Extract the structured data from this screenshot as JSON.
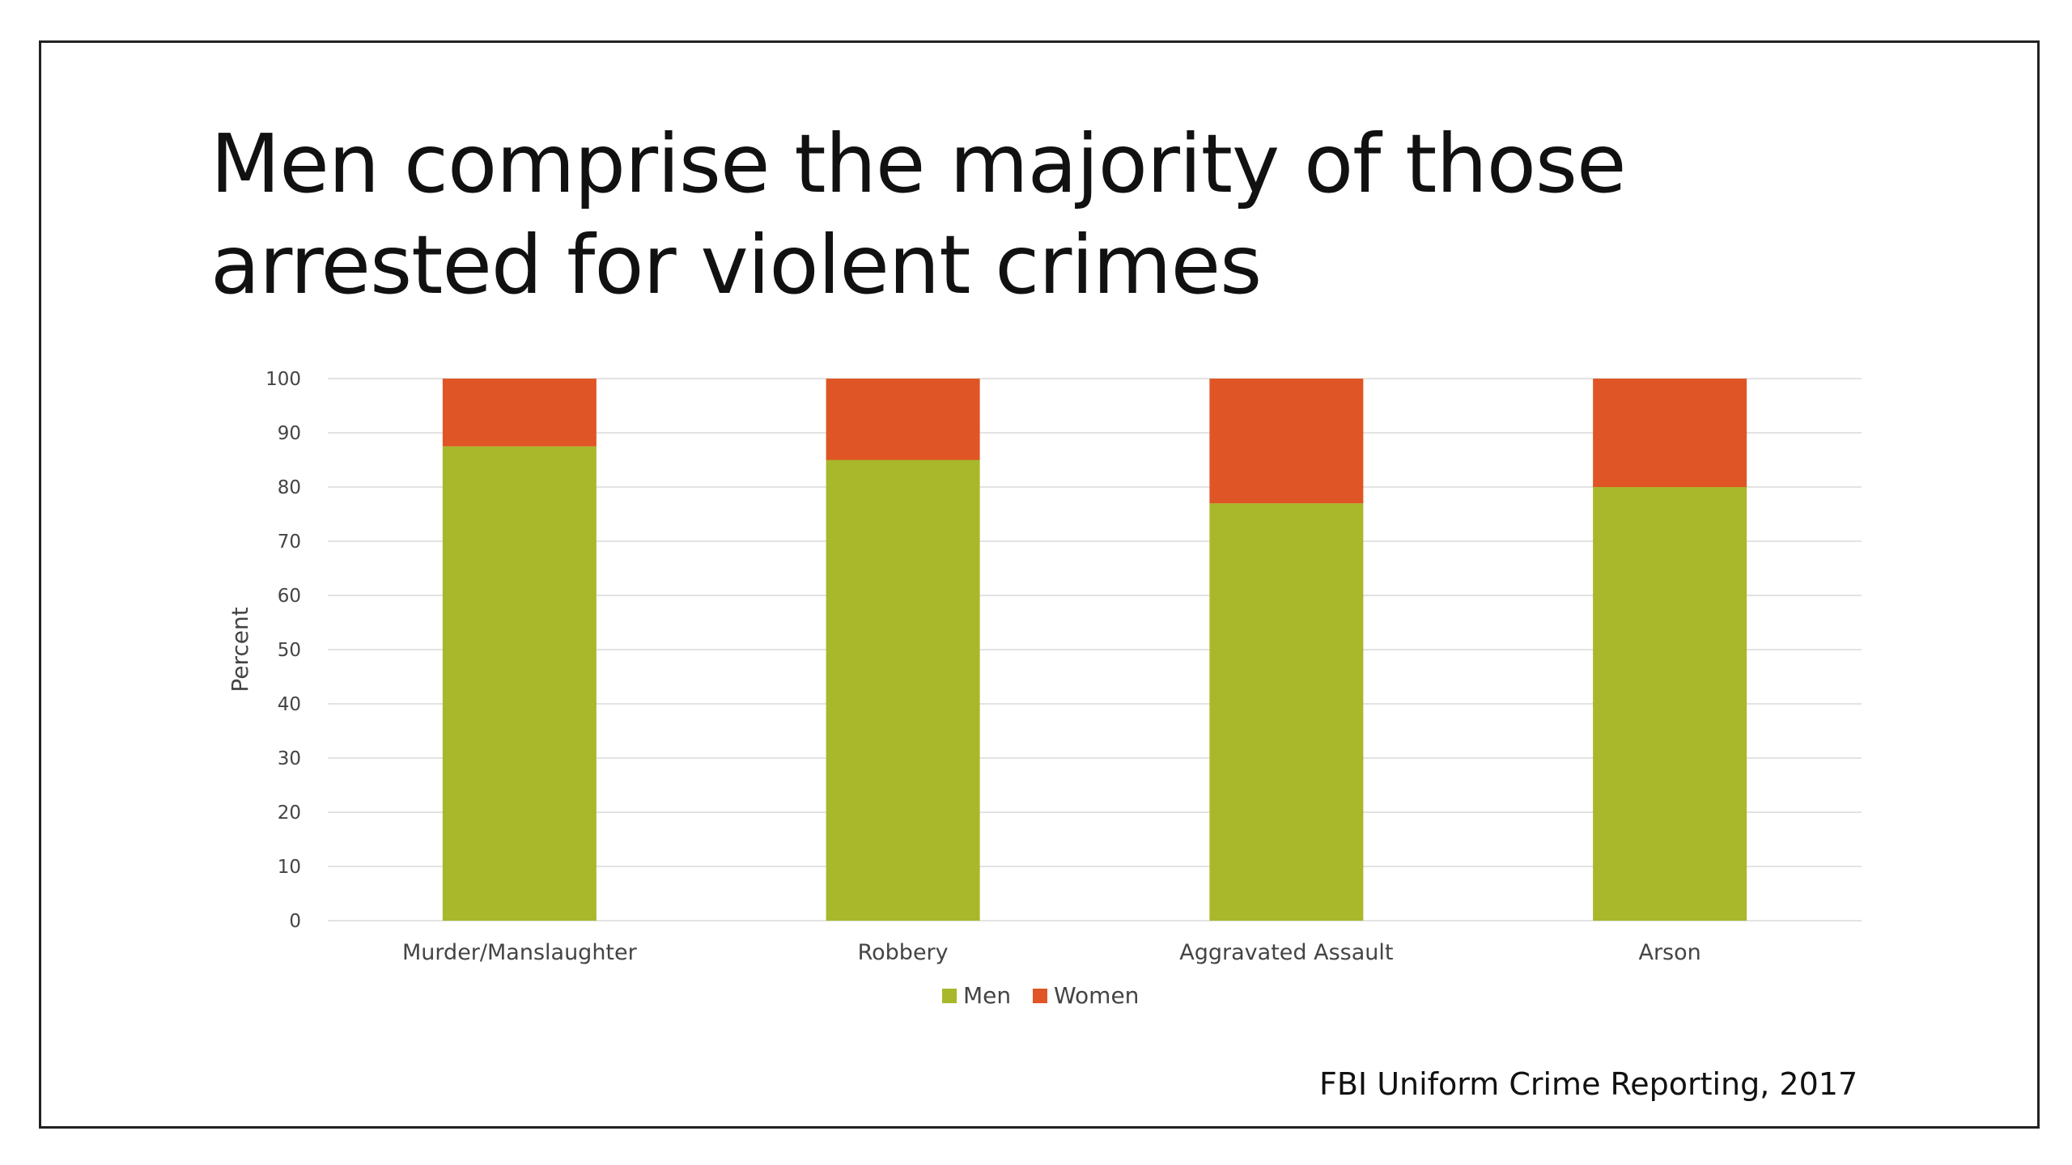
{
  "slide": {
    "title_lines": [
      "Men comprise the majority of those",
      "arrested for violent crimes"
    ],
    "source": "FBI Uniform Crime Reporting, 2017"
  },
  "chart_data": {
    "type": "bar",
    "stacked": true,
    "categories": [
      "Murder/Manslaughter",
      "Robbery",
      "Aggravated Assault",
      "Arson"
    ],
    "series": [
      {
        "name": "Men",
        "values": [
          87.5,
          85,
          77,
          80
        ],
        "color": "#a8b82a"
      },
      {
        "name": "Women",
        "values": [
          12.5,
          15,
          23,
          20
        ],
        "color": "#e05525"
      }
    ],
    "xlabel": "",
    "ylabel": "Percent",
    "ylim": [
      0,
      100
    ],
    "yticks": [
      0,
      10,
      20,
      30,
      40,
      50,
      60,
      70,
      80,
      90,
      100
    ],
    "grid": true,
    "gridline_color": "#e3e3e3",
    "legend_position": "bottom"
  }
}
